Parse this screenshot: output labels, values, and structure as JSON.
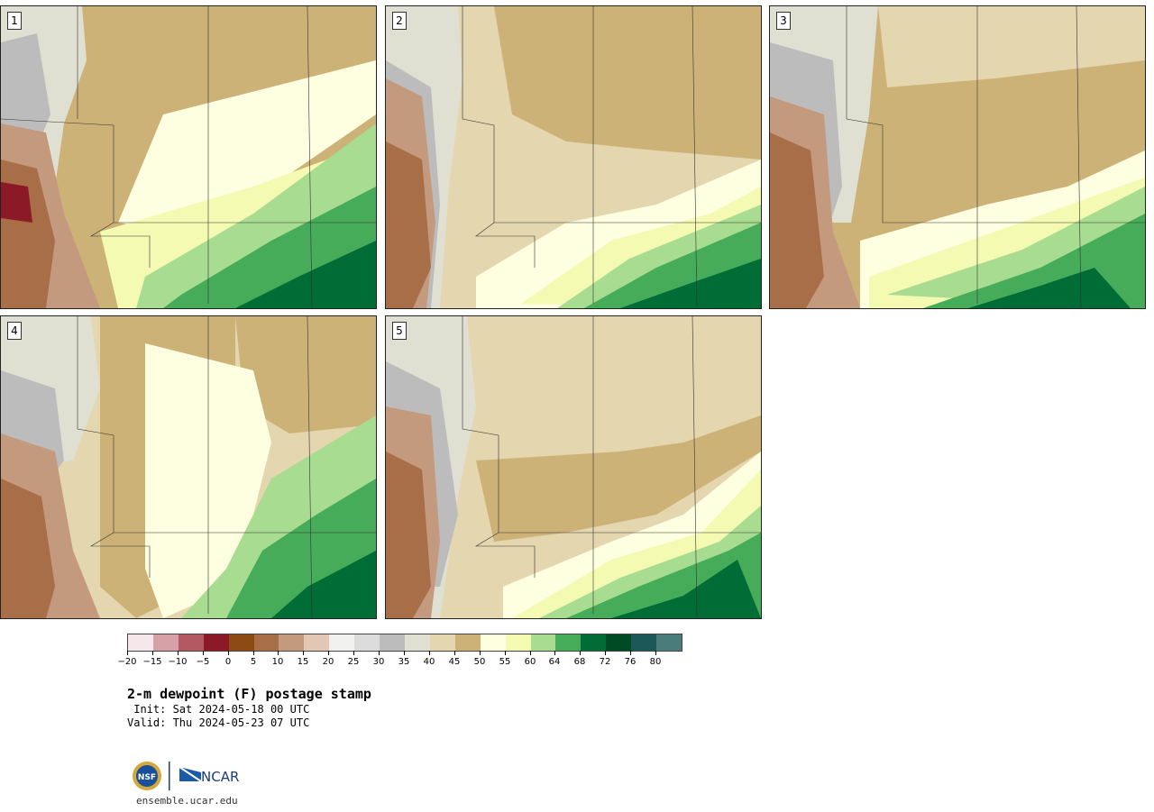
{
  "panels": [
    {
      "label": "1"
    },
    {
      "label": "2"
    },
    {
      "label": "3"
    },
    {
      "label": "4"
    },
    {
      "label": "5"
    }
  ],
  "colorbar": {
    "colors": [
      "#f6e8ea",
      "#d6a2a8",
      "#b25962",
      "#8c1a26",
      "#8c4a14",
      "#a86e48",
      "#c49a7e",
      "#e2c8b4",
      "#f0f0ee",
      "#dcdcdc",
      "#bcbcbc",
      "#e0e0d2",
      "#e4d6ae",
      "#cdb278",
      "#fefee0",
      "#f4fab2",
      "#a8dc90",
      "#46ac5a",
      "#006c36",
      "#004a26",
      "#1c5858",
      "#4a7c7c"
    ],
    "tick_labels": [
      "−20",
      "−15",
      "−10",
      "−5",
      "0",
      "5",
      "10",
      "15",
      "20",
      "25",
      "30",
      "35",
      "40",
      "45",
      "50",
      "55",
      "60",
      "64",
      "68",
      "72",
      "76",
      "80"
    ]
  },
  "title": "2-m dewpoint (F) postage stamp",
  "init": " Init: Sat 2024-05-18 00 UTC",
  "valid": "Valid: Thu 2024-05-23 07 UTC",
  "logos": {
    "nsf": "NSF",
    "ncar": "NCAR"
  },
  "url": "ensemble.ucar.edu"
}
